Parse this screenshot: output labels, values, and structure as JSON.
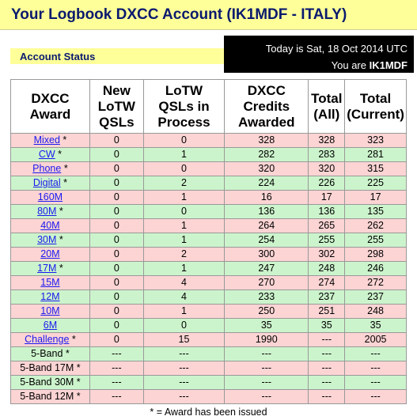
{
  "header": {
    "title": "Your Logbook DXCC Account (IK1MDF - ITALY)",
    "section": "Account Status",
    "date": "Today is Sat, 18 Oct 2014 UTC",
    "user_prefix": "You are",
    "user": "IK1MDF"
  },
  "table": {
    "columns": [
      [
        "DXCC",
        "Award"
      ],
      [
        "New",
        "LoTW",
        "QSLs"
      ],
      [
        "LoTW",
        "QSLs in",
        "Process"
      ],
      [
        "DXCC",
        "Credits",
        "Awarded"
      ],
      [
        "Total",
        "(All)"
      ],
      [
        "Total",
        "(Current)"
      ]
    ],
    "rows": [
      {
        "award": "Mixed",
        "link": true,
        "issued": "*",
        "cells": [
          0,
          0,
          328,
          328,
          323
        ]
      },
      {
        "award": "CW",
        "link": true,
        "issued": "*",
        "cells": [
          0,
          1,
          282,
          283,
          281
        ]
      },
      {
        "award": "Phone",
        "link": true,
        "issued": "*",
        "cells": [
          0,
          0,
          320,
          320,
          315
        ]
      },
      {
        "award": "Digital",
        "link": true,
        "issued": "*",
        "cells": [
          0,
          2,
          224,
          226,
          225
        ]
      },
      {
        "award": "160M",
        "link": true,
        "cells": [
          0,
          1,
          16,
          17,
          17
        ]
      },
      {
        "award": "80M",
        "link": true,
        "issued": "*",
        "cells": [
          0,
          0,
          136,
          136,
          135
        ]
      },
      {
        "award": "40M",
        "link": true,
        "cells": [
          0,
          1,
          264,
          265,
          262
        ]
      },
      {
        "award": "30M",
        "link": true,
        "issued": "*",
        "cells": [
          0,
          1,
          254,
          255,
          255
        ]
      },
      {
        "award": "20M",
        "link": true,
        "cells": [
          0,
          2,
          300,
          302,
          298
        ]
      },
      {
        "award": "17M",
        "link": true,
        "issued": "*",
        "cells": [
          0,
          1,
          247,
          248,
          246
        ]
      },
      {
        "award": "15M",
        "link": true,
        "cells": [
          0,
          4,
          270,
          274,
          272
        ]
      },
      {
        "award": "12M",
        "link": true,
        "cells": [
          0,
          4,
          233,
          237,
          237
        ]
      },
      {
        "award": "10M",
        "link": true,
        "cells": [
          0,
          1,
          250,
          251,
          248
        ]
      },
      {
        "award": "6M",
        "link": true,
        "cells": [
          0,
          0,
          35,
          35,
          35
        ]
      },
      {
        "award": "Challenge",
        "link": true,
        "issued": "*",
        "cells": [
          0,
          15,
          1990,
          "---",
          2005
        ]
      },
      {
        "award": "5-Band",
        "link": false,
        "issued": "*",
        "cells": [
          "---",
          "---",
          "---",
          "---",
          "---"
        ]
      },
      {
        "award": "5-Band 17M",
        "link": false,
        "issued": "*",
        "cells": [
          "---",
          "---",
          "---",
          "---",
          "---"
        ]
      },
      {
        "award": "5-Band 30M",
        "link": false,
        "issued": "*",
        "cells": [
          "---",
          "---",
          "---",
          "---",
          "---"
        ]
      },
      {
        "award": "5-Band 12M",
        "link": false,
        "issued": "*",
        "cells": [
          "---",
          "---",
          "---",
          "---",
          "---"
        ]
      }
    ]
  },
  "footer": "* = Award has been issued"
}
